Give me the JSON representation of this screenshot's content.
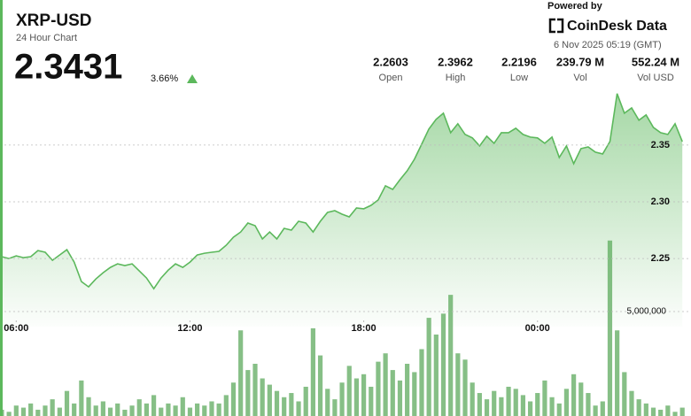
{
  "header": {
    "title": "XRP-USD",
    "subtitle": "24 Hour Chart",
    "price": "2.3431",
    "change": "3.66%",
    "powered_by": "Powered by",
    "brand": "CoinDesk Data",
    "timestamp": "6 Nov 2025 05:19 (GMT)",
    "stats": [
      {
        "value": "2.2603",
        "label": "Open"
      },
      {
        "value": "2.3962",
        "label": "High"
      },
      {
        "value": "2.2196",
        "label": "Low"
      },
      {
        "value": "239.79 M",
        "label": "Vol"
      },
      {
        "value": "552.24 M",
        "label": "Vol USD"
      }
    ]
  },
  "chart_data": {
    "type": "area",
    "x": [
      5.5,
      5.75,
      6,
      6.25,
      6.5,
      6.75,
      7,
      7.25,
      7.5,
      7.75,
      8,
      8.25,
      8.5,
      8.75,
      9,
      9.25,
      9.5,
      9.75,
      10,
      10.25,
      10.5,
      10.75,
      11,
      11.25,
      11.5,
      11.75,
      12,
      12.25,
      12.5,
      12.75,
      13,
      13.25,
      13.5,
      13.75,
      14,
      14.25,
      14.5,
      14.75,
      15,
      15.25,
      15.5,
      15.75,
      16,
      16.25,
      16.5,
      16.75,
      17,
      17.25,
      17.5,
      17.75,
      18,
      18.25,
      18.5,
      18.75,
      19,
      19.25,
      19.5,
      19.75,
      20,
      20.25,
      20.5,
      20.75,
      21,
      21.25,
      21.5,
      21.75,
      22,
      22.25,
      22.5,
      22.75,
      23,
      23.25,
      23.5,
      23.75,
      24,
      24.25,
      24.5,
      24.75,
      25,
      25.25,
      25.5,
      25.75,
      26,
      26.25,
      26.5,
      26.75,
      27,
      27.25,
      27.5,
      27.75,
      28,
      28.25,
      28.5,
      28.75,
      29
    ],
    "xlim": [
      5.44,
      29.3
    ],
    "xticks": [
      {
        "value": 6,
        "label": "06:00"
      },
      {
        "value": 12,
        "label": "12:00"
      },
      {
        "value": 18,
        "label": "18:00"
      },
      {
        "value": 24,
        "label": "00:00"
      }
    ],
    "ylim": [
      2.19,
      2.41
    ],
    "yticks": [
      2.25,
      {
        "value": 2.3,
        "label": "2.30"
      },
      2.35
    ],
    "y2lim": [
      0,
      10000000
    ],
    "y2ticks": [
      {
        "value": 5000000,
        "label": "5,000,000"
      }
    ],
    "grid": true,
    "series": [
      {
        "type": "area",
        "color": "#5cb85c",
        "values": [
          2.2516,
          2.25,
          2.2523,
          2.2508,
          2.2516,
          2.257,
          2.2555,
          2.2484,
          2.2531,
          2.2578,
          2.2469,
          2.2297,
          2.225,
          2.232,
          2.2375,
          2.2422,
          2.2453,
          2.2438,
          2.2453,
          2.2391,
          2.2328,
          2.2234,
          2.2328,
          2.2398,
          2.2453,
          2.2422,
          2.2469,
          2.2531,
          2.2547,
          2.2555,
          2.2563,
          2.2617,
          2.2688,
          2.2734,
          2.2813,
          2.2789,
          2.2672,
          2.2734,
          2.2672,
          2.2766,
          2.275,
          2.2828,
          2.2813,
          2.2734,
          2.2828,
          2.2906,
          2.2922,
          2.2891,
          2.2867,
          2.2945,
          2.2938,
          2.2969,
          2.3016,
          2.3141,
          2.3109,
          2.3195,
          2.3273,
          2.3375,
          2.3508,
          2.3641,
          2.3727,
          2.3781,
          2.3609,
          2.3688,
          2.3594,
          2.3563,
          2.3492,
          2.3578,
          2.3516,
          2.3609,
          2.3609,
          2.3648,
          2.3594,
          2.357,
          2.3563,
          2.3516,
          2.357,
          2.3391,
          2.3492,
          2.3336,
          2.3469,
          2.3484,
          2.3438,
          2.3422,
          2.3531,
          2.3953,
          2.3781,
          2.3828,
          2.3719,
          2.3766,
          2.3656,
          2.3609,
          2.3594,
          2.3688,
          2.3531
        ]
      },
      {
        "type": "bar",
        "axis": "y2",
        "color": "#86bf86",
        "values": [
          300000,
          200000,
          500000,
          400000,
          600000,
          300000,
          500000,
          800000,
          400000,
          1200000,
          600000,
          1700000,
          900000,
          500000,
          700000,
          400000,
          600000,
          300000,
          500000,
          800000,
          600000,
          1000000,
          400000,
          600000,
          500000,
          900000,
          400000,
          600000,
          500000,
          700000,
          600000,
          1000000,
          1600000,
          4100000,
          2200000,
          2500000,
          1800000,
          1500000,
          1200000,
          900000,
          1100000,
          700000,
          1400000,
          4200000,
          2900000,
          1300000,
          800000,
          1600000,
          2400000,
          1800000,
          2000000,
          1400000,
          2600000,
          3000000,
          2200000,
          1700000,
          2500000,
          2100000,
          3200000,
          4700000,
          3900000,
          4900000,
          5800000,
          3000000,
          2700000,
          1600000,
          1100000,
          800000,
          1200000,
          900000,
          1400000,
          1300000,
          1000000,
          700000,
          1100000,
          1700000,
          900000,
          600000,
          1300000,
          2000000,
          1600000,
          1100000,
          500000,
          700000,
          8400000,
          4100000,
          2100000,
          1200000,
          800000,
          600000,
          400000,
          300000,
          500000,
          200000,
          400000
        ]
      }
    ]
  }
}
